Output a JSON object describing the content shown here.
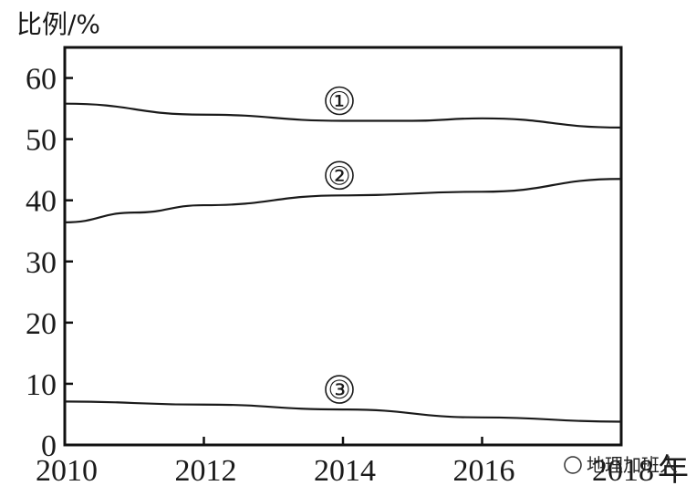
{
  "chart_data": {
    "type": "line",
    "ylabel": "比例/%",
    "xunit": "年",
    "x": [
      2010,
      2012,
      2014,
      2016,
      2018
    ],
    "xticks": [
      "2010",
      "2012",
      "2014",
      "2016",
      "2018"
    ],
    "yticks": [
      "0",
      "10",
      "20",
      "30",
      "40",
      "50",
      "60"
    ],
    "xlim": [
      2010,
      2018
    ],
    "ylim": [
      0,
      65
    ],
    "grid": false,
    "series": [
      {
        "name": "①",
        "x": [
          2010,
          2012,
          2014,
          2015,
          2016,
          2018
        ],
        "values": [
          55.8,
          54.0,
          53.0,
          53.0,
          53.4,
          51.9
        ]
      },
      {
        "name": "②",
        "x": [
          2010,
          2011,
          2012,
          2014,
          2016,
          2018
        ],
        "values": [
          36.4,
          38.0,
          39.2,
          40.8,
          41.4,
          43.5
        ]
      },
      {
        "name": "③",
        "x": [
          2010,
          2012,
          2014,
          2016,
          2018
        ],
        "values": [
          7.1,
          6.6,
          5.8,
          4.5,
          3.8
        ]
      }
    ],
    "watermark": "地理加班人"
  }
}
